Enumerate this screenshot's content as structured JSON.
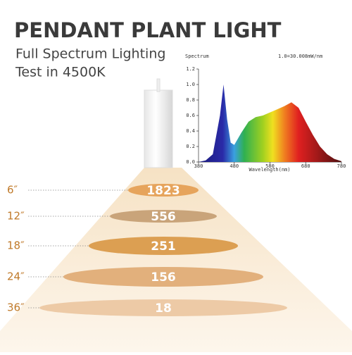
{
  "header": {
    "title": "PENDANT PLANT LIGHT",
    "subtitle": [
      "Full Spectrum Lighting",
      "Test in 4500K"
    ]
  },
  "chart_data": {
    "type": "area",
    "title": "Spectrum",
    "annotation": "1.0=30.008mW/nm",
    "x_label": "Wavelength(nm)",
    "x": [
      380,
      400,
      420,
      440,
      450,
      460,
      470,
      480,
      500,
      520,
      540,
      560,
      580,
      600,
      620,
      640,
      660,
      680,
      700,
      720,
      740,
      760,
      780
    ],
    "values": [
      0,
      0.02,
      0.1,
      0.6,
      1.0,
      0.55,
      0.25,
      0.22,
      0.38,
      0.52,
      0.58,
      0.6,
      0.64,
      0.68,
      0.72,
      0.77,
      0.7,
      0.52,
      0.35,
      0.2,
      0.1,
      0.04,
      0.01
    ],
    "xlim": [
      380,
      780
    ],
    "xticks": [
      380,
      480,
      580,
      680,
      780
    ],
    "ylim": [
      0,
      1.2
    ],
    "yticks": [
      {
        "value": 0,
        "label": "0.0"
      },
      0.2,
      0.4,
      0.6,
      0.8,
      {
        "value": 1,
        "label": "1.0"
      },
      1.2
    ]
  },
  "levels": [
    {
      "distance": "6″",
      "value": "1823"
    },
    {
      "distance": "12″",
      "value": "556"
    },
    {
      "distance": "18″",
      "value": "251"
    },
    {
      "distance": "24″",
      "value": "156"
    },
    {
      "distance": "36″",
      "value": "18"
    }
  ]
}
